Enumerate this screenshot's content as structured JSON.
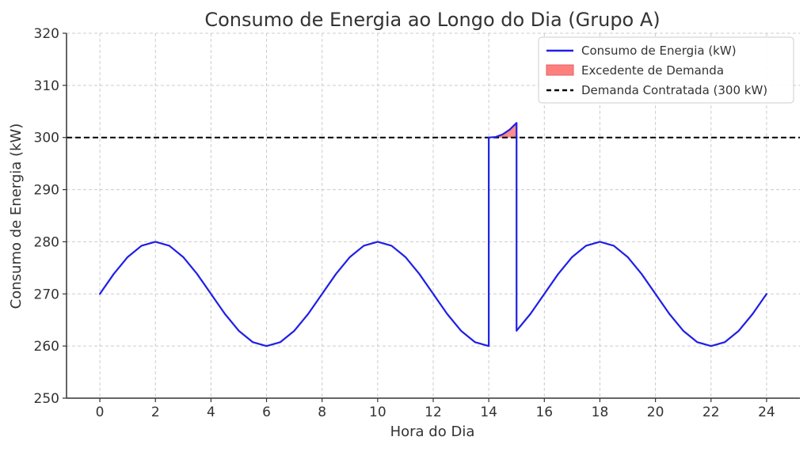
{
  "chart_data": {
    "type": "line",
    "title": "Consumo de Energia ao Longo do Dia (Grupo A)",
    "xlabel": "Hora do Dia",
    "ylabel": "Consumo de Energia (kW)",
    "xlim": [
      -1.2,
      25.2
    ],
    "ylim": [
      250,
      320
    ],
    "xticks": [
      "0",
      "2",
      "4",
      "6",
      "8",
      "10",
      "12",
      "14",
      "16",
      "18",
      "20",
      "22",
      "24"
    ],
    "yticks": [
      "250",
      "260",
      "270",
      "280",
      "290",
      "300",
      "310",
      "320"
    ],
    "grid": true,
    "legend_position": "top-right",
    "series": [
      {
        "name": "Consumo de Energia (kW)",
        "color": "#1f1fe6",
        "points": [
          [
            0,
            270.0
          ],
          [
            0.5,
            273.83
          ],
          [
            1,
            277.07
          ],
          [
            1.5,
            279.24
          ],
          [
            2,
            280.0
          ],
          [
            2.5,
            279.24
          ],
          [
            3,
            277.07
          ],
          [
            3.5,
            273.83
          ],
          [
            4,
            270.0
          ],
          [
            4.5,
            266.17
          ],
          [
            5,
            262.93
          ],
          [
            5.5,
            260.76
          ],
          [
            6,
            260.0
          ],
          [
            6.5,
            260.76
          ],
          [
            7,
            262.93
          ],
          [
            7.5,
            266.17
          ],
          [
            8,
            270.0
          ],
          [
            8.5,
            273.83
          ],
          [
            9,
            277.07
          ],
          [
            9.5,
            279.24
          ],
          [
            10,
            280.0
          ],
          [
            10.5,
            279.24
          ],
          [
            11,
            277.07
          ],
          [
            11.5,
            273.83
          ],
          [
            12,
            270.0
          ],
          [
            12.5,
            266.17
          ],
          [
            13,
            262.93
          ],
          [
            13.5,
            260.76
          ],
          [
            14,
            260.0
          ],
          [
            14,
            300.0
          ],
          [
            14.25,
            300.1
          ],
          [
            14.5,
            300.6
          ],
          [
            14.75,
            301.5
          ],
          [
            15,
            302.8
          ],
          [
            15,
            262.93
          ],
          [
            15.5,
            266.17
          ],
          [
            16,
            270.0
          ],
          [
            16.5,
            273.83
          ],
          [
            17,
            277.07
          ],
          [
            17.5,
            279.24
          ],
          [
            18,
            280.0
          ],
          [
            18.5,
            279.24
          ],
          [
            19,
            277.07
          ],
          [
            19.5,
            273.83
          ],
          [
            20,
            270.0
          ],
          [
            20.5,
            266.17
          ],
          [
            21,
            262.93
          ],
          [
            21.5,
            260.76
          ],
          [
            22,
            260.0
          ],
          [
            22.5,
            260.76
          ],
          [
            23,
            262.93
          ],
          [
            23.5,
            266.17
          ],
          [
            24,
            270.0
          ]
        ]
      }
    ],
    "fill_area": {
      "name": "Excedente de Demanda",
      "color": "#ff7f7f",
      "x_range": [
        14,
        15
      ],
      "points": [
        [
          14,
          300.0
        ],
        [
          14.25,
          300.1
        ],
        [
          14.5,
          300.6
        ],
        [
          14.75,
          301.5
        ],
        [
          15,
          302.8
        ]
      ],
      "baseline": 300
    },
    "reference_line": {
      "name": "Demanda Contratada (300 kW)",
      "y": 300,
      "color": "#000000",
      "style": "dashed"
    }
  }
}
